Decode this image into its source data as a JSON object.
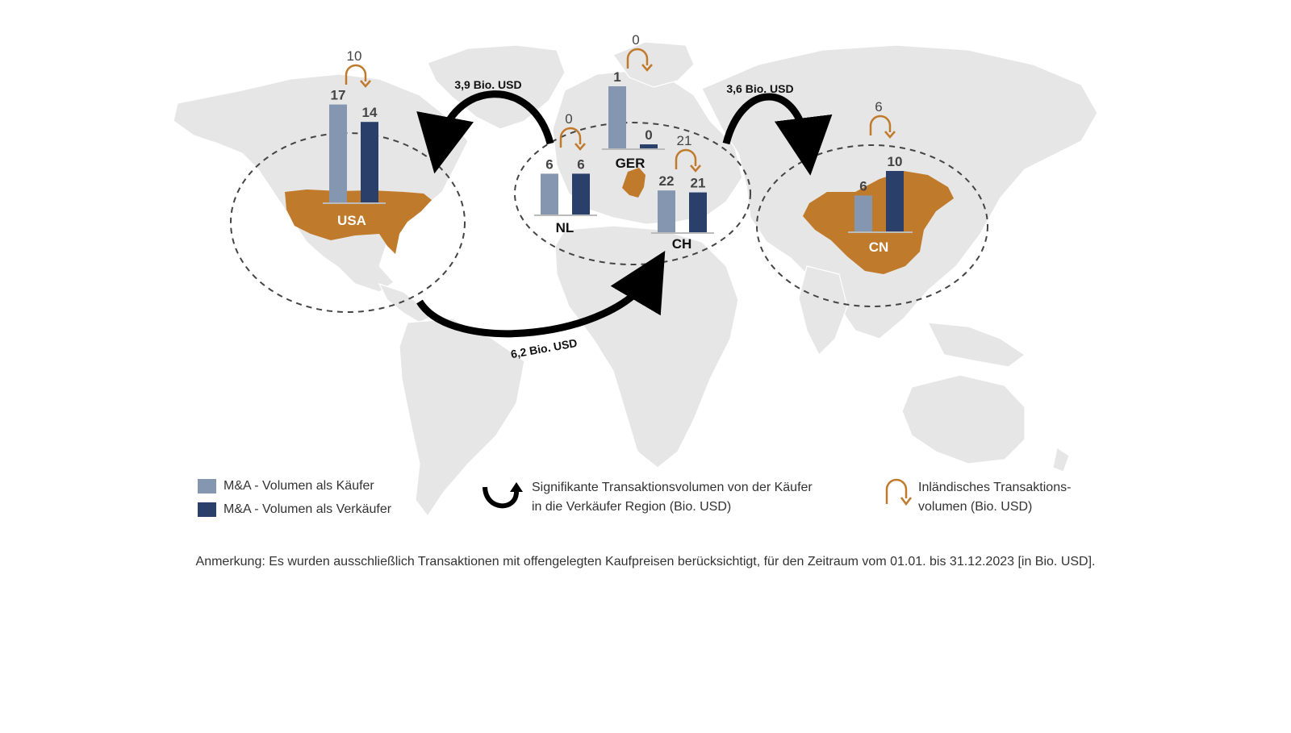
{
  "colors": {
    "buyer": "#8496b0",
    "seller": "#2b3f6b",
    "highlight": "#c07a2b",
    "land": "#e6e6e6",
    "arrow": "#000000"
  },
  "regions": {
    "usa": {
      "label": "USA",
      "buyer": 17,
      "seller": 14,
      "domestic": 10
    },
    "nl": {
      "label": "NL",
      "buyer": 6,
      "seller": 6,
      "domestic": 0
    },
    "ger": {
      "label": "GER",
      "buyer": 1,
      "seller": 0,
      "domestic": 0
    },
    "ch": {
      "label": "CH",
      "buyer": 22,
      "seller": 21,
      "domestic": 21
    },
    "cn": {
      "label": "CN",
      "buyer": 6,
      "seller": 10,
      "domestic": 6
    }
  },
  "flows": {
    "eu_to_us": "3,9 Bio. USD",
    "eu_to_cn": "3,6 Bio. USD",
    "us_to_eu": "6,2 Bio. USD"
  },
  "legend": {
    "buyer": "M&A - Volumen als Käufer",
    "seller": "M&A - Volumen als Verkäufer",
    "flow_line1": "Signifikante Transaktionsvolumen von der Käufer",
    "flow_line2": "in die Verkäufer Region (Bio. USD)",
    "domestic_line1": "Inländisches Transaktions-",
    "domestic_line2": "volumen (Bio. USD)"
  },
  "note": "Anmerkung: Es wurden ausschließlich Transaktionen mit offengelegten Kaufpreisen berücksichtigt, für den Zeitraum vom 01.01. bis 31.12.2023 [in Bio. USD]."
}
